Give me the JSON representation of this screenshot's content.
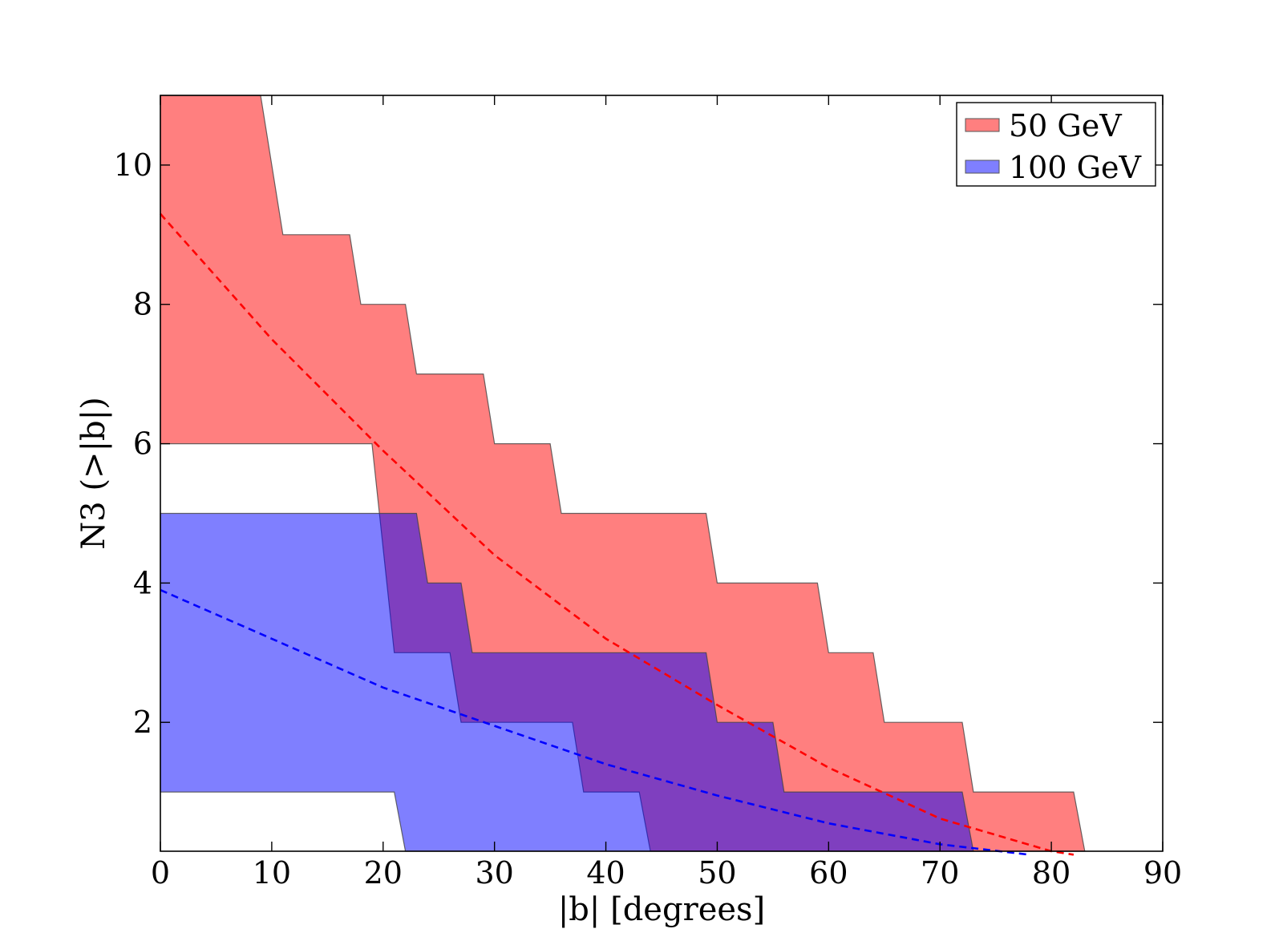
{
  "chart_data": {
    "type": "area",
    "title": "",
    "xlabel": "|b| [degrees]",
    "ylabel": "N3 (>|b|)",
    "xlim": [
      0,
      90
    ],
    "ylim": [
      0.15,
      11
    ],
    "xticks": [
      0,
      10,
      20,
      30,
      40,
      50,
      60,
      70,
      80,
      90
    ],
    "yticks": [
      2,
      4,
      6,
      8,
      10
    ],
    "grid": false,
    "legend_position": "top-right",
    "colors": {
      "red": "#ff0000",
      "blue": "#0000ff",
      "outline": "#555555"
    },
    "series": [
      {
        "name": "50 GeV",
        "color": "#ff0000",
        "fill_opacity": 0.5,
        "band_upper": [
          [
            0,
            11
          ],
          [
            9,
            11
          ],
          [
            11,
            9
          ],
          [
            17,
            9
          ],
          [
            18,
            8
          ],
          [
            22,
            8
          ],
          [
            23,
            7
          ],
          [
            29,
            7
          ],
          [
            30,
            6
          ],
          [
            35,
            6
          ],
          [
            36,
            5
          ],
          [
            49,
            5
          ],
          [
            50,
            4
          ],
          [
            59,
            4
          ],
          [
            60,
            3
          ],
          [
            64,
            3
          ],
          [
            65,
            2
          ],
          [
            72,
            2
          ],
          [
            73,
            1
          ],
          [
            82,
            1
          ],
          [
            83,
            0.15
          ]
        ],
        "band_lower": [
          [
            0,
            6
          ],
          [
            19,
            6
          ],
          [
            21,
            3
          ],
          [
            26,
            3
          ],
          [
            27,
            2
          ],
          [
            37,
            2
          ],
          [
            38,
            1
          ],
          [
            43,
            1
          ],
          [
            44,
            0.15
          ]
        ],
        "mean_curve": [
          [
            0,
            9.3
          ],
          [
            10,
            7.5
          ],
          [
            20,
            5.9
          ],
          [
            30,
            4.4
          ],
          [
            40,
            3.2
          ],
          [
            50,
            2.25
          ],
          [
            60,
            1.35
          ],
          [
            70,
            0.62
          ],
          [
            80,
            0.15
          ],
          [
            82,
            0.1
          ]
        ]
      },
      {
        "name": "100 GeV",
        "color": "#0000ff",
        "fill_opacity": 0.5,
        "band_upper": [
          [
            0,
            5
          ],
          [
            23,
            5
          ],
          [
            24,
            4
          ],
          [
            27,
            4
          ],
          [
            28,
            3
          ],
          [
            49,
            3
          ],
          [
            50,
            2
          ],
          [
            55,
            2
          ],
          [
            56,
            1
          ],
          [
            72,
            1
          ],
          [
            73,
            0.15
          ]
        ],
        "band_lower": [
          [
            0,
            1
          ],
          [
            21,
            1
          ],
          [
            22,
            0.15
          ]
        ],
        "mean_curve": [
          [
            0,
            3.9
          ],
          [
            10,
            3.2
          ],
          [
            20,
            2.5
          ],
          [
            30,
            1.95
          ],
          [
            40,
            1.4
          ],
          [
            50,
            0.95
          ],
          [
            60,
            0.55
          ],
          [
            70,
            0.25
          ],
          [
            78,
            0.1
          ]
        ]
      }
    ]
  }
}
